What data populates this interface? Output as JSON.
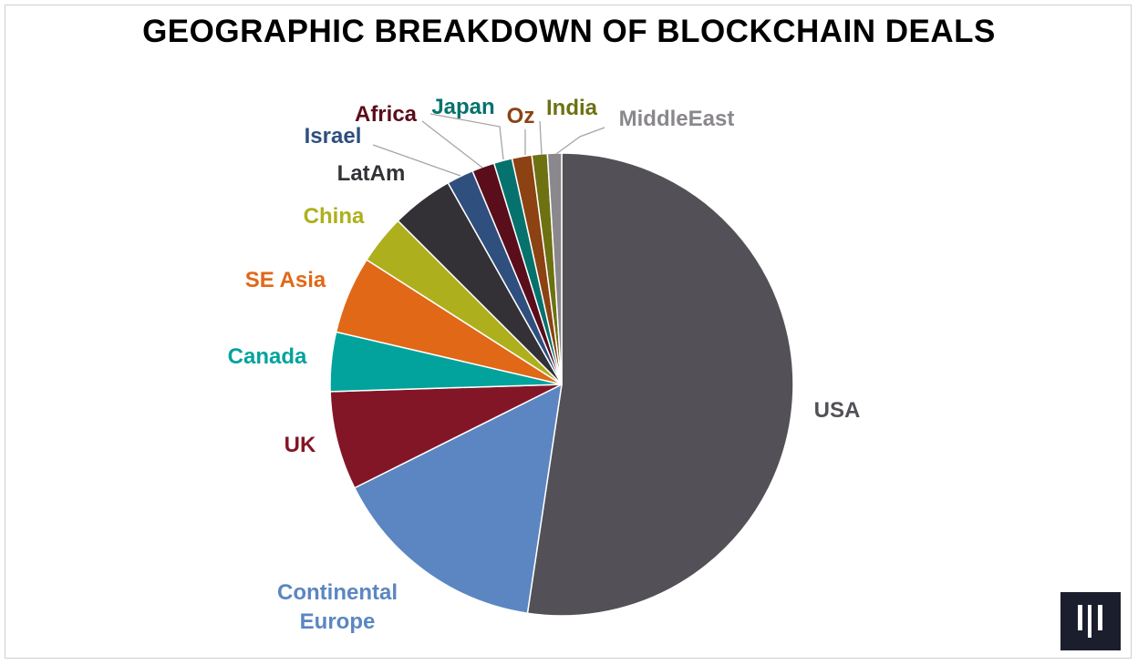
{
  "chart_data": {
    "type": "pie",
    "title": "GEOGRAPHIC BREAKDOWN OF BLOCKCHAIN DEALS",
    "start_angle_deg": 0,
    "direction": "clockwise",
    "slices": [
      {
        "label": "USA",
        "value": 53.2,
        "color": "#545057",
        "label_color": "#545057"
      },
      {
        "label": "Continental Europe",
        "label_lines": [
          "Continental",
          "Europe"
        ],
        "value": 15.5,
        "color": "#5b86c2",
        "label_color": "#5b86c2"
      },
      {
        "label": "UK",
        "value": 7.0,
        "color": "#831626",
        "label_color": "#831626"
      },
      {
        "label": "Canada",
        "value": 4.2,
        "color": "#02a39c",
        "label_color": "#02a39c"
      },
      {
        "label": "SE Asia",
        "value": 5.5,
        "color": "#e16817",
        "label_color": "#e16817"
      },
      {
        "label": "China",
        "value": 3.5,
        "color": "#adb01c",
        "label_color": "#adb01c"
      },
      {
        "label": "LatAm",
        "value": 4.4,
        "color": "#333136",
        "label_color": "#333136"
      },
      {
        "label": "Israel",
        "value": 1.9,
        "color": "#2f4f7e",
        "label_color": "#2f4f7e"
      },
      {
        "label": "Africa",
        "value": 1.6,
        "color": "#5a0d1a",
        "label_color": "#5a0d1a"
      },
      {
        "label": "Japan",
        "value": 1.3,
        "color": "#05726d",
        "label_color": "#05726d"
      },
      {
        "label": "Oz",
        "value": 1.4,
        "color": "#8c4212",
        "label_color": "#8c4212"
      },
      {
        "label": "India",
        "value": 1.1,
        "color": "#6e7112",
        "label_color": "#6e7112"
      },
      {
        "label": "MiddleEast",
        "value": 1.0,
        "color": "#8a878d",
        "label_color": "#8a878d"
      }
    ]
  },
  "logo": {
    "name": "brand-logo",
    "color": "#1b1e2c"
  }
}
